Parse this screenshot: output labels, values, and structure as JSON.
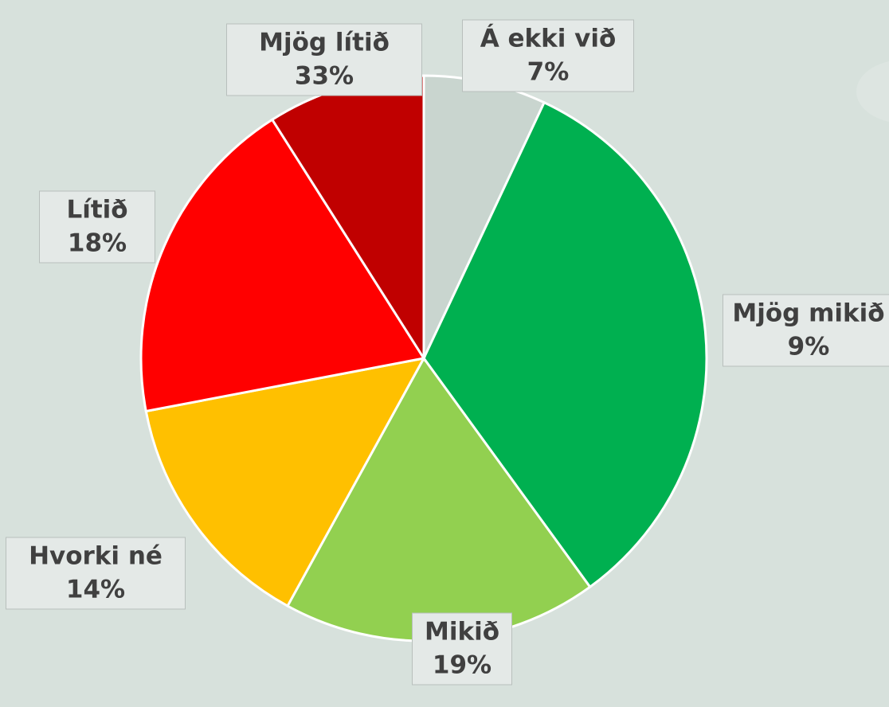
{
  "chart_data": {
    "type": "pie",
    "categories": [
      "Á ekki við",
      "Mjög lítið",
      "Lítið",
      "Hvorki né",
      "Mikið",
      "Mjög mikið"
    ],
    "values": [
      7,
      33,
      18,
      14,
      19,
      9
    ],
    "value_labels": [
      "7%",
      "33%",
      "18%",
      "14%",
      "19%",
      "9%"
    ],
    "colors": [
      "#c9d5cf",
      "#00b050",
      "#92d050",
      "#ffc000",
      "#ff0000",
      "#c00000"
    ]
  }
}
